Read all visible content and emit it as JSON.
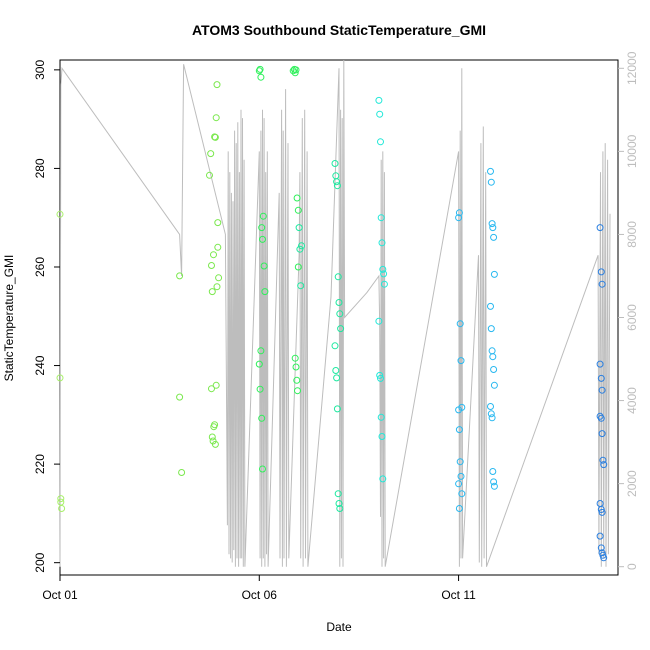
{
  "chart_data": {
    "type": "scatter",
    "title": "ATOM3 Southbound StaticTemperature_GMI",
    "xlabel": "Date",
    "ylabel": "StaticTemperature_GMI",
    "xlim_days": [
      0.0,
      14.0
    ],
    "ylim": [
      197.5,
      302.0
    ],
    "x_ticks": [
      {
        "label": "Oct 01",
        "value": 0
      },
      {
        "label": "Oct 06",
        "value": 5
      },
      {
        "label": "Oct 11",
        "value": 10
      }
    ],
    "y_ticks": [
      200,
      220,
      240,
      260,
      280,
      300
    ],
    "y2_ticks": [
      0,
      2000,
      4000,
      6000,
      8000,
      10000,
      12000
    ],
    "y2_label": "",
    "y2lim": [
      -200,
      12200
    ],
    "point_color_scale": [
      "#a8f06a",
      "#7be84e",
      "#2ef05a",
      "#1ee8a0",
      "#22e8d8",
      "#28b8f0",
      "#2a7fe0"
    ],
    "line_color": "#bdbdbd",
    "altitude_trace": [
      [
        0.0,
        0
      ],
      [
        0.02,
        11600
      ],
      [
        0.05,
        12000
      ],
      [
        3.0,
        8000
      ],
      [
        3.05,
        7000
      ],
      [
        3.1,
        12100
      ],
      [
        4.15,
        8000
      ],
      [
        4.2,
        1000
      ],
      [
        4.22,
        10000
      ],
      [
        4.24,
        300
      ],
      [
        4.26,
        9500
      ],
      [
        4.28,
        200
      ],
      [
        4.3,
        9000
      ],
      [
        4.32,
        100
      ],
      [
        4.34,
        8800
      ],
      [
        4.36,
        400
      ],
      [
        4.38,
        10500
      ],
      [
        4.4,
        0
      ],
      [
        4.42,
        10200
      ],
      [
        4.44,
        200
      ],
      [
        4.46,
        10700
      ],
      [
        4.48,
        0
      ],
      [
        4.5,
        9500
      ],
      [
        4.52,
        200
      ],
      [
        4.54,
        11000
      ],
      [
        4.56,
        200
      ],
      [
        4.58,
        10800
      ],
      [
        4.6,
        0
      ],
      [
        4.62,
        9800
      ],
      [
        4.64,
        0
      ],
      [
        5.0,
        10000
      ],
      [
        5.02,
        200
      ],
      [
        5.04,
        10500
      ],
      [
        5.06,
        0
      ],
      [
        5.08,
        11000
      ],
      [
        5.1,
        200
      ],
      [
        5.12,
        10800
      ],
      [
        5.14,
        0
      ],
      [
        5.16,
        9500
      ],
      [
        5.18,
        300
      ],
      [
        5.2,
        10000
      ],
      [
        5.22,
        0
      ],
      [
        5.5,
        9000
      ],
      [
        5.52,
        200
      ],
      [
        5.56,
        11000
      ],
      [
        5.58,
        0
      ],
      [
        5.6,
        10500
      ],
      [
        5.62,
        200
      ],
      [
        5.66,
        11500
      ],
      [
        5.68,
        0
      ],
      [
        5.72,
        10200
      ],
      [
        5.74,
        200
      ],
      [
        6.0,
        7500
      ],
      [
        6.02,
        9500
      ],
      [
        6.04,
        200
      ],
      [
        6.08,
        10800
      ],
      [
        6.1,
        0
      ],
      [
        6.14,
        11000
      ],
      [
        6.16,
        200
      ],
      [
        6.2,
        10000
      ],
      [
        6.22,
        0
      ],
      [
        6.8,
        6500
      ],
      [
        7.0,
        12000
      ],
      [
        7.02,
        0
      ],
      [
        7.04,
        11000
      ],
      [
        7.06,
        200
      ],
      [
        7.08,
        10800
      ],
      [
        7.1,
        0
      ],
      [
        7.12,
        12200
      ],
      [
        7.14,
        6000
      ],
      [
        7.7,
        6600
      ],
      [
        8.0,
        7000
      ],
      [
        8.02,
        5800
      ],
      [
        8.04,
        1200
      ],
      [
        8.06,
        9800
      ],
      [
        8.08,
        0
      ],
      [
        8.1,
        10000
      ],
      [
        8.12,
        200
      ],
      [
        8.14,
        9500
      ],
      [
        8.16,
        0
      ],
      [
        10.0,
        10000
      ],
      [
        10.02,
        0
      ],
      [
        10.04,
        10500
      ],
      [
        10.06,
        200
      ],
      [
        10.08,
        12000
      ],
      [
        10.1,
        200
      ],
      [
        10.5,
        7500
      ],
      [
        10.52,
        100
      ],
      [
        10.56,
        10200
      ],
      [
        10.58,
        0
      ],
      [
        10.62,
        10600
      ],
      [
        10.64,
        200
      ],
      [
        10.68,
        9500
      ],
      [
        10.7,
        0
      ],
      [
        13.5,
        7500
      ],
      [
        13.52,
        300
      ],
      [
        13.56,
        9500
      ],
      [
        13.58,
        0
      ],
      [
        13.62,
        10000
      ],
      [
        13.64,
        200
      ],
      [
        13.68,
        10200
      ],
      [
        13.7,
        0
      ],
      [
        13.74,
        9800
      ],
      [
        13.76,
        300
      ],
      [
        13.8,
        8500
      ]
    ],
    "points": [
      [
        0.0,
        270.7
      ],
      [
        0.0,
        237.5
      ],
      [
        0.02,
        213.0
      ],
      [
        0.02,
        212.3
      ],
      [
        0.04,
        211.0
      ],
      [
        3.0,
        258.2
      ],
      [
        3.0,
        233.6
      ],
      [
        3.05,
        218.3
      ],
      [
        3.75,
        278.6
      ],
      [
        3.78,
        283.0
      ],
      [
        3.8,
        260.3
      ],
      [
        3.82,
        255.0
      ],
      [
        3.85,
        262.5
      ],
      [
        3.88,
        286.4
      ],
      [
        3.9,
        286.3
      ],
      [
        3.92,
        290.3
      ],
      [
        3.94,
        297.0
      ],
      [
        3.96,
        269.0
      ],
      [
        3.98,
        257.8
      ],
      [
        3.8,
        235.3
      ],
      [
        3.82,
        225.5
      ],
      [
        3.84,
        224.7
      ],
      [
        3.86,
        227.6
      ],
      [
        3.88,
        228.0
      ],
      [
        3.9,
        224.0
      ],
      [
        3.92,
        236.0
      ],
      [
        3.94,
        256.0
      ],
      [
        3.96,
        264.0
      ],
      [
        5.0,
        299.8
      ],
      [
        5.02,
        300.1
      ],
      [
        5.04,
        298.5
      ],
      [
        5.06,
        268.0
      ],
      [
        5.08,
        265.6
      ],
      [
        5.1,
        270.3
      ],
      [
        5.12,
        260.2
      ],
      [
        5.14,
        255.0
      ],
      [
        5.0,
        240.3
      ],
      [
        5.02,
        235.2
      ],
      [
        5.04,
        243.0
      ],
      [
        5.06,
        229.3
      ],
      [
        5.08,
        219.0
      ],
      [
        5.85,
        299.8
      ],
      [
        5.88,
        300.1
      ],
      [
        5.9,
        299.4
      ],
      [
        5.92,
        300.0
      ],
      [
        5.95,
        274.0
      ],
      [
        5.98,
        271.5
      ],
      [
        6.0,
        268.0
      ],
      [
        6.02,
        263.6
      ],
      [
        6.04,
        256.2
      ],
      [
        6.06,
        264.3
      ],
      [
        5.9,
        241.5
      ],
      [
        5.92,
        239.7
      ],
      [
        5.94,
        237.0
      ],
      [
        5.96,
        234.9
      ],
      [
        5.98,
        260.0
      ],
      [
        6.9,
        281.0
      ],
      [
        6.92,
        278.5
      ],
      [
        6.94,
        277.3
      ],
      [
        6.96,
        276.5
      ],
      [
        6.98,
        258.0
      ],
      [
        7.0,
        252.8
      ],
      [
        7.02,
        250.5
      ],
      [
        7.04,
        247.5
      ],
      [
        6.9,
        244.0
      ],
      [
        6.92,
        239.0
      ],
      [
        6.94,
        237.5
      ],
      [
        6.96,
        231.2
      ],
      [
        6.98,
        214.0
      ],
      [
        7.0,
        212.0
      ],
      [
        7.02,
        211.0
      ],
      [
        8.0,
        293.8
      ],
      [
        8.02,
        291.0
      ],
      [
        8.04,
        285.4
      ],
      [
        8.06,
        270.0
      ],
      [
        8.08,
        264.9
      ],
      [
        8.1,
        259.5
      ],
      [
        8.12,
        258.6
      ],
      [
        8.14,
        256.5
      ],
      [
        8.0,
        249.0
      ],
      [
        8.02,
        238.0
      ],
      [
        8.04,
        237.4
      ],
      [
        8.06,
        229.5
      ],
      [
        8.08,
        225.6
      ],
      [
        8.1,
        217.0
      ],
      [
        10.0,
        270.0
      ],
      [
        10.02,
        271.0
      ],
      [
        10.04,
        248.5
      ],
      [
        10.06,
        241.0
      ],
      [
        10.08,
        231.5
      ],
      [
        10.0,
        231.0
      ],
      [
        10.02,
        227.0
      ],
      [
        10.04,
        220.5
      ],
      [
        10.06,
        217.5
      ],
      [
        10.08,
        214.0
      ],
      [
        10.0,
        216.0
      ],
      [
        10.02,
        211.0
      ],
      [
        10.8,
        279.4
      ],
      [
        10.82,
        277.2
      ],
      [
        10.84,
        268.8
      ],
      [
        10.86,
        268.0
      ],
      [
        10.88,
        266.0
      ],
      [
        10.9,
        258.5
      ],
      [
        10.8,
        252.0
      ],
      [
        10.82,
        247.5
      ],
      [
        10.84,
        243.0
      ],
      [
        10.86,
        241.8
      ],
      [
        10.88,
        239.2
      ],
      [
        10.9,
        236.0
      ],
      [
        10.8,
        231.7
      ],
      [
        10.82,
        230.2
      ],
      [
        10.84,
        229.4
      ],
      [
        10.86,
        218.5
      ],
      [
        10.88,
        216.4
      ],
      [
        10.9,
        215.5
      ],
      [
        13.55,
        268.0
      ],
      [
        13.58,
        259.0
      ],
      [
        13.6,
        256.5
      ],
      [
        13.55,
        240.3
      ],
      [
        13.58,
        237.4
      ],
      [
        13.6,
        235.0
      ],
      [
        13.55,
        229.7
      ],
      [
        13.58,
        229.3
      ],
      [
        13.6,
        226.2
      ],
      [
        13.62,
        220.8
      ],
      [
        13.64,
        219.9
      ],
      [
        13.55,
        212.0
      ],
      [
        13.58,
        210.8
      ],
      [
        13.6,
        210.2
      ],
      [
        13.55,
        205.4
      ],
      [
        13.58,
        203.0
      ],
      [
        13.6,
        202.0
      ],
      [
        13.62,
        201.5
      ],
      [
        13.64,
        201.0
      ]
    ]
  }
}
